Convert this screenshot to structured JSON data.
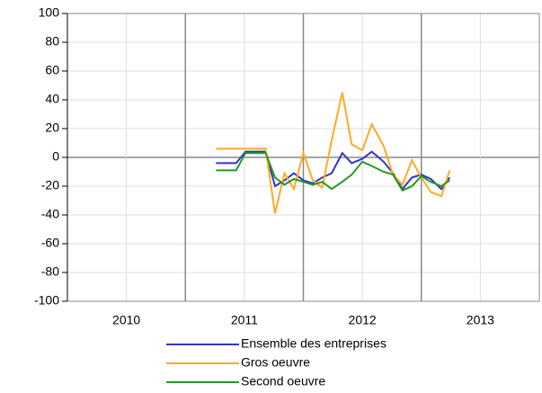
{
  "chart_data": {
    "type": "line",
    "x": [
      2011.26,
      2011.43,
      2011.51,
      2011.68,
      2011.76,
      2011.84,
      2011.92,
      2012.0,
      2012.08,
      2012.16,
      2012.24,
      2012.33,
      2012.41,
      2012.5,
      2012.58,
      2012.68,
      2012.76,
      2012.84,
      2012.92,
      2013.0,
      2013.08,
      2013.17,
      2013.24
    ],
    "series": [
      {
        "name": "Ensemble des entreprises",
        "color": "#3333cc",
        "values": [
          -4,
          -4,
          4,
          4,
          -20,
          -16,
          -11,
          -16,
          -18,
          -14,
          -11,
          3,
          -4,
          -1,
          4,
          -3,
          -11,
          -22,
          -14,
          -12,
          -15,
          -22,
          -14
        ]
      },
      {
        "name": "Gros oeuvre",
        "color": "#ffaa22",
        "values": [
          6,
          6,
          6,
          6,
          -39,
          -11,
          -22,
          3,
          -16,
          -21,
          12,
          45,
          9,
          5,
          23,
          8,
          -12,
          -19,
          -2,
          -14,
          -24,
          -27,
          -9
        ]
      },
      {
        "name": "Second oeuvre",
        "color": "#229922",
        "values": [
          -9,
          -9,
          3,
          3,
          -14,
          -19,
          -15,
          -17,
          -19,
          -17,
          -22,
          -17,
          -12,
          -3,
          -6,
          -10,
          -12,
          -23,
          -20,
          -13,
          -17,
          -20,
          -16
        ]
      }
    ],
    "xlim": [
      2010,
      2014
    ],
    "xticks": [
      {
        "value": 2010.5,
        "label": "2010"
      },
      {
        "value": 2011.5,
        "label": "2011"
      },
      {
        "value": 2012.5,
        "label": "2012"
      },
      {
        "value": 2013.5,
        "label": "2013"
      }
    ],
    "ylim": [
      -100,
      100
    ],
    "yticks": [
      -100,
      -80,
      -60,
      -40,
      -20,
      0,
      20,
      40,
      60,
      80,
      100
    ],
    "grid": true,
    "legend": "bottom"
  }
}
